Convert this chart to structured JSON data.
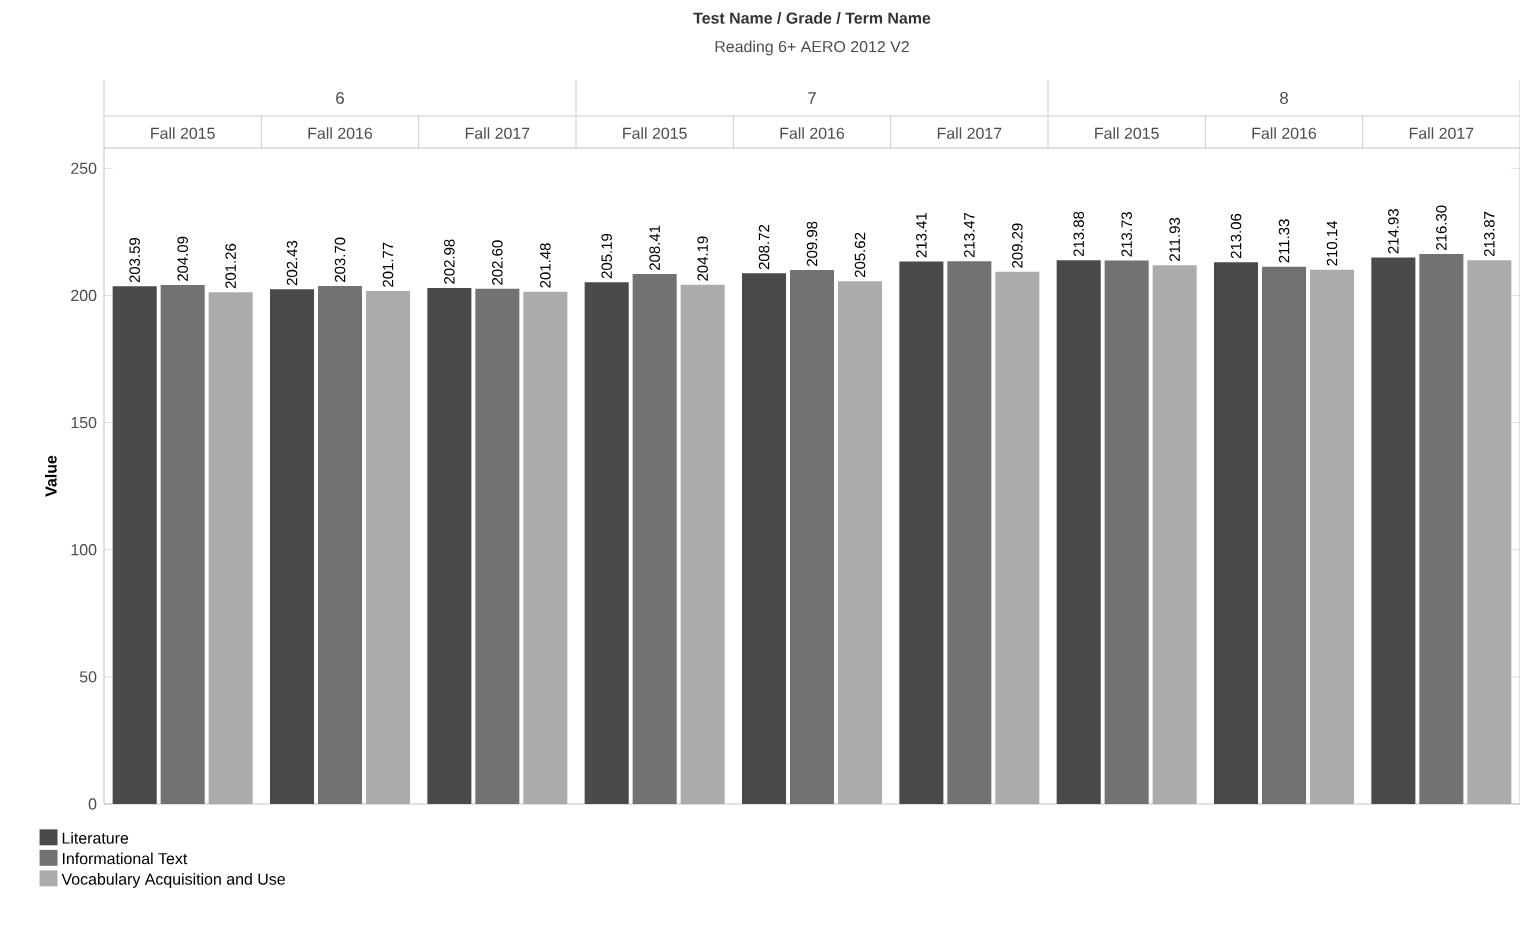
{
  "chart_data": {
    "type": "bar",
    "title": "Test Name / Grade / Term Name",
    "subtitle": "Reading 6+ AERO 2012 V2",
    "annotations": [
      "6",
      "7",
      "8"
    ],
    "categories": [
      "Fall 2015",
      "Fall 2016",
      "Fall 2017",
      "Fall 2015",
      "Fall 2016",
      "Fall 2017",
      "Fall 2015",
      "Fall 2016",
      "Fall 2017"
    ],
    "series": [
      {
        "name": "Literature",
        "color": "#4a4a4a",
        "values": [
          203.59,
          202.43,
          202.98,
          205.19,
          208.72,
          213.41,
          213.88,
          213.06,
          214.93
        ],
        "value_labels": [
          "203.59",
          "202.43",
          "202.98",
          "205.19",
          "208.72",
          "213.41",
          "213.88",
          "213.06",
          "214.93"
        ]
      },
      {
        "name": "Informational Text",
        "color": "#727272",
        "values": [
          204.09,
          203.7,
          202.6,
          208.41,
          209.98,
          213.47,
          213.73,
          211.33,
          216.3
        ],
        "value_labels": [
          "204.09",
          "203.70",
          "202.60",
          "208.41",
          "209.98",
          "213.47",
          "213.73",
          "211.33",
          "216.30"
        ]
      },
      {
        "name": "Vocabulary Acquisition and Use",
        "color": "#ababab",
        "values": [
          201.26,
          201.77,
          201.48,
          204.19,
          205.62,
          209.29,
          211.93,
          210.14,
          213.87
        ],
        "value_labels": [
          "201.26",
          "201.77",
          "201.48",
          "204.19",
          "205.62",
          "209.29",
          "211.93",
          "210.14",
          "213.87"
        ]
      }
    ],
    "ylabel": "Value",
    "ylim": [
      0,
      258
    ],
    "yticks": [
      0,
      50,
      100,
      150,
      200,
      250
    ],
    "legend": "bottom left"
  }
}
